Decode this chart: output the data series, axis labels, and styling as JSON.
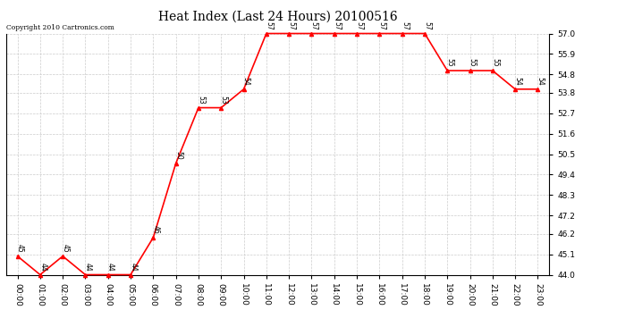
{
  "title": "Heat Index (Last 24 Hours) 20100516",
  "copyright": "Copyright 2010 Cartronics.com",
  "hours": [
    "00:00",
    "01:00",
    "02:00",
    "03:00",
    "04:00",
    "05:00",
    "06:00",
    "07:00",
    "08:00",
    "09:00",
    "10:00",
    "11:00",
    "12:00",
    "13:00",
    "14:00",
    "15:00",
    "16:00",
    "17:00",
    "18:00",
    "19:00",
    "20:00",
    "21:00",
    "22:00",
    "23:00"
  ],
  "values": [
    45,
    44,
    45,
    44,
    44,
    44,
    46,
    50,
    53,
    53,
    54,
    57,
    57,
    57,
    57,
    57,
    57,
    57,
    57,
    55,
    55,
    55,
    54,
    54
  ],
  "ylim": [
    44.0,
    57.0
  ],
  "yticks": [
    44.0,
    45.1,
    46.2,
    47.2,
    48.3,
    49.4,
    50.5,
    51.6,
    52.7,
    53.8,
    54.8,
    55.9,
    57.0
  ],
  "line_color": "#ff0000",
  "marker": "^",
  "marker_color": "#ff0000",
  "marker_size": 3,
  "bg_color": "#ffffff",
  "grid_color": "#cccccc",
  "title_fontsize": 10,
  "label_fontsize": 6.5,
  "annot_fontsize": 5.5
}
